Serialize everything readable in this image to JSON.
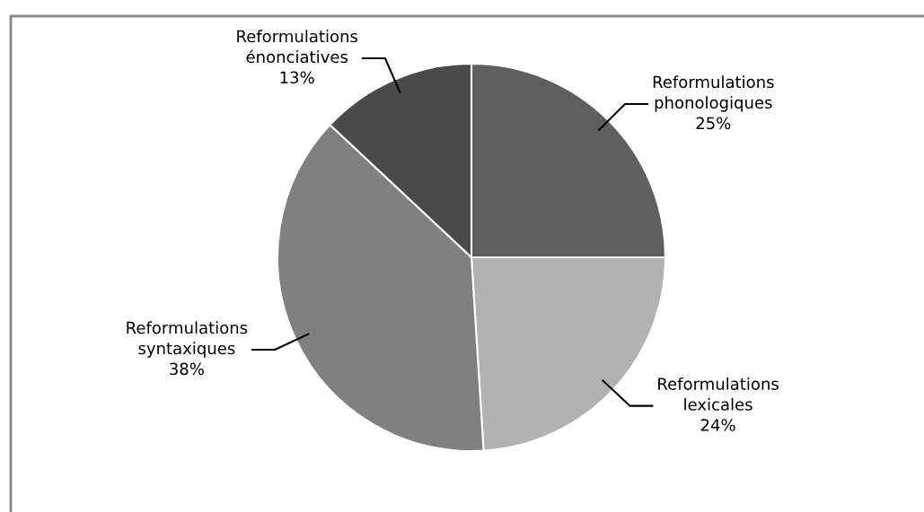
{
  "chart_data": {
    "type": "pie",
    "categories": [
      "Reformulations\nphonologiques",
      "Reformulations\nlexicales",
      "Reformulations\nsyntaxiques",
      "Reformulations\nénonciatives"
    ],
    "values": [
      25,
      24,
      38,
      13
    ],
    "colors": [
      "#5f5f5f",
      "#b2b2b2",
      "#808080",
      "#4a4a4a"
    ],
    "value_labels": [
      "25%",
      "24%",
      "38%",
      "13%"
    ]
  }
}
